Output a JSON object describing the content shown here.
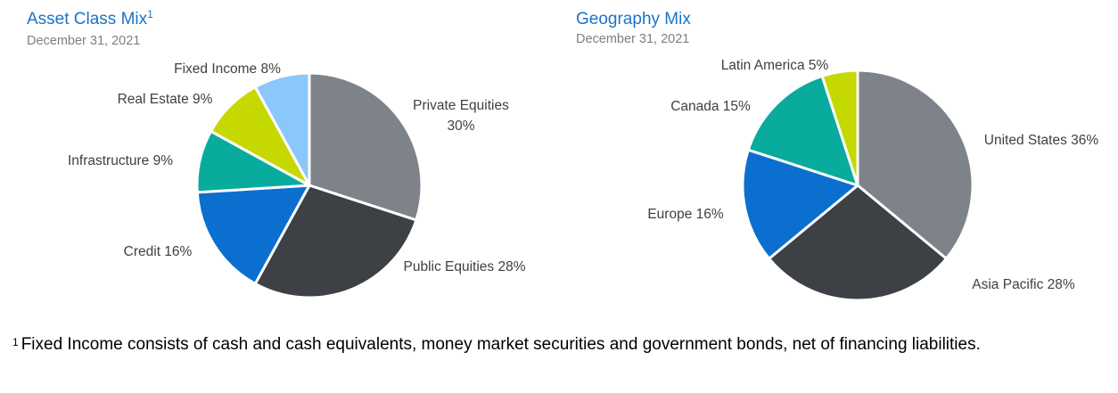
{
  "chart_data": [
    {
      "type": "pie",
      "title": "Asset Class Mix",
      "title_footnote_marker": "1",
      "subtitle": "December 31, 2021",
      "slices": [
        {
          "name": "Private Equities",
          "label": "Private Equities 30%",
          "value": 30,
          "color": "#7d8389"
        },
        {
          "name": "Public Equities",
          "label": "Public Equities 28%",
          "value": 28,
          "color": "#3d4145"
        },
        {
          "name": "Credit",
          "label": "Credit 16%",
          "value": 16,
          "color": "#0b6fd0"
        },
        {
          "name": "Infrastructure",
          "label": "Infrastructure 9%",
          "value": 9,
          "color": "#08ab9c"
        },
        {
          "name": "Real Estate",
          "label": "Real Estate 9%",
          "value": 9,
          "color": "#c5d800"
        },
        {
          "name": "Fixed Income",
          "label": "Fixed Income 8%",
          "value": 8,
          "color": "#8ac7fb"
        }
      ]
    },
    {
      "type": "pie",
      "title": "Geography Mix",
      "subtitle": "December 31, 2021",
      "slices": [
        {
          "name": "United States",
          "label": "United States 36%",
          "value": 36,
          "color": "#7d8389"
        },
        {
          "name": "Asia Pacific",
          "label": "Asia Pacific 28%",
          "value": 28,
          "color": "#3d4145"
        },
        {
          "name": "Europe",
          "label": "Europe 16%",
          "value": 16,
          "color": "#0b6fd0"
        },
        {
          "name": "Canada",
          "label": "Canada 15%",
          "value": 15,
          "color": "#08ab9c"
        },
        {
          "name": "Latin America",
          "label": "Latin America 5%",
          "value": 5,
          "color": "#c5d800"
        }
      ]
    }
  ],
  "footnote": {
    "marker": "1",
    "text": "Fixed Income consists of cash and cash equivalents, money market securities and government bonds, net of financing liabilities."
  }
}
